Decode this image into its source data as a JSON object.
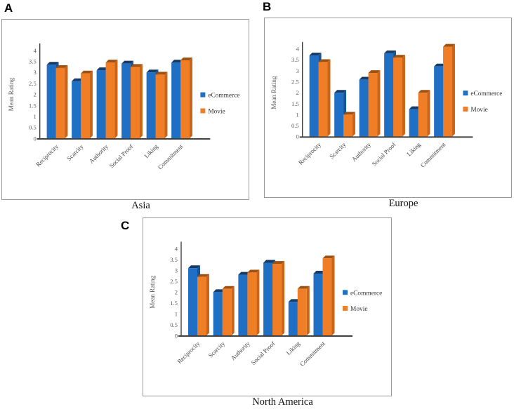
{
  "panels": [
    {
      "panel_label": "A",
      "caption": "Asia"
    },
    {
      "panel_label": "B",
      "caption": "Europe"
    },
    {
      "panel_label": "C",
      "caption": "North America"
    }
  ],
  "colors": {
    "ecommerce_front": "#1f6fc4",
    "ecommerce_top": "#173a66",
    "ecommerce_side": "#1a5391",
    "movie_front": "#f07e27",
    "movie_top": "#9e5110",
    "movie_side": "#c96418",
    "axis_line": "#404040",
    "tick_text": "#595959",
    "category_text": "#404040",
    "legend_text": "#333333",
    "panel_border": "#999999"
  },
  "chart_data": [
    {
      "type": "bar",
      "title": "Asia",
      "categories": [
        "Reciprocity",
        "Scarcity",
        "Authority",
        "Social Proof",
        "Liking",
        "Commitment"
      ],
      "series": [
        {
          "name": "eCommerce",
          "color": "#1f6fc4",
          "color_top": "#173a66",
          "color_side": "#1a5391",
          "values": [
            3.35,
            2.6,
            3.1,
            3.4,
            3.0,
            3.45
          ]
        },
        {
          "name": "Movie",
          "color": "#f07e27",
          "color_top": "#9e5110",
          "color_side": "#c96418",
          "values": [
            3.2,
            2.95,
            3.45,
            3.25,
            2.9,
            3.55
          ]
        }
      ],
      "xlabel": "",
      "ylabel": "Mean Rating",
      "ylim": [
        0,
        4
      ],
      "ytick_step": 0.5,
      "grid": false,
      "legend_position": "right",
      "effect": "3d"
    },
    {
      "type": "bar",
      "title": "Europe",
      "categories": [
        "Reciprocity",
        "Scarcity",
        "Authority",
        "Social Proof",
        "Liking",
        "Commitment"
      ],
      "series": [
        {
          "name": "eCommerce",
          "color": "#1f6fc4",
          "color_top": "#173a66",
          "color_side": "#1a5391",
          "values": [
            3.7,
            2.0,
            2.6,
            3.8,
            1.25,
            3.2
          ]
        },
        {
          "name": "Movie",
          "color": "#f07e27",
          "color_top": "#9e5110",
          "color_side": "#c96418",
          "values": [
            3.4,
            1.0,
            2.9,
            3.6,
            2.0,
            4.1
          ]
        }
      ],
      "xlabel": "",
      "ylabel": "Mean Rating",
      "ylim": [
        0,
        4
      ],
      "ytick_step": 0.5,
      "grid": false,
      "legend_position": "right",
      "effect": "3d"
    },
    {
      "type": "bar",
      "title": "North America",
      "categories": [
        "Reciprocity",
        "Scarcity",
        "Authority",
        "Social Proof",
        "Liking",
        "Commitment"
      ],
      "series": [
        {
          "name": "eCommerce",
          "color": "#1f6fc4",
          "color_top": "#173a66",
          "color_side": "#1a5391",
          "values": [
            3.1,
            2.0,
            2.8,
            3.35,
            1.55,
            2.85
          ]
        },
        {
          "name": "Movie",
          "color": "#f07e27",
          "color_top": "#9e5110",
          "color_side": "#c96418",
          "values": [
            2.7,
            2.15,
            2.9,
            3.3,
            2.15,
            3.55
          ]
        }
      ],
      "xlabel": "",
      "ylabel": "Mean Rating",
      "ylim": [
        0,
        4
      ],
      "ytick_step": 0.5,
      "grid": false,
      "legend_position": "right",
      "effect": "3d"
    }
  ]
}
